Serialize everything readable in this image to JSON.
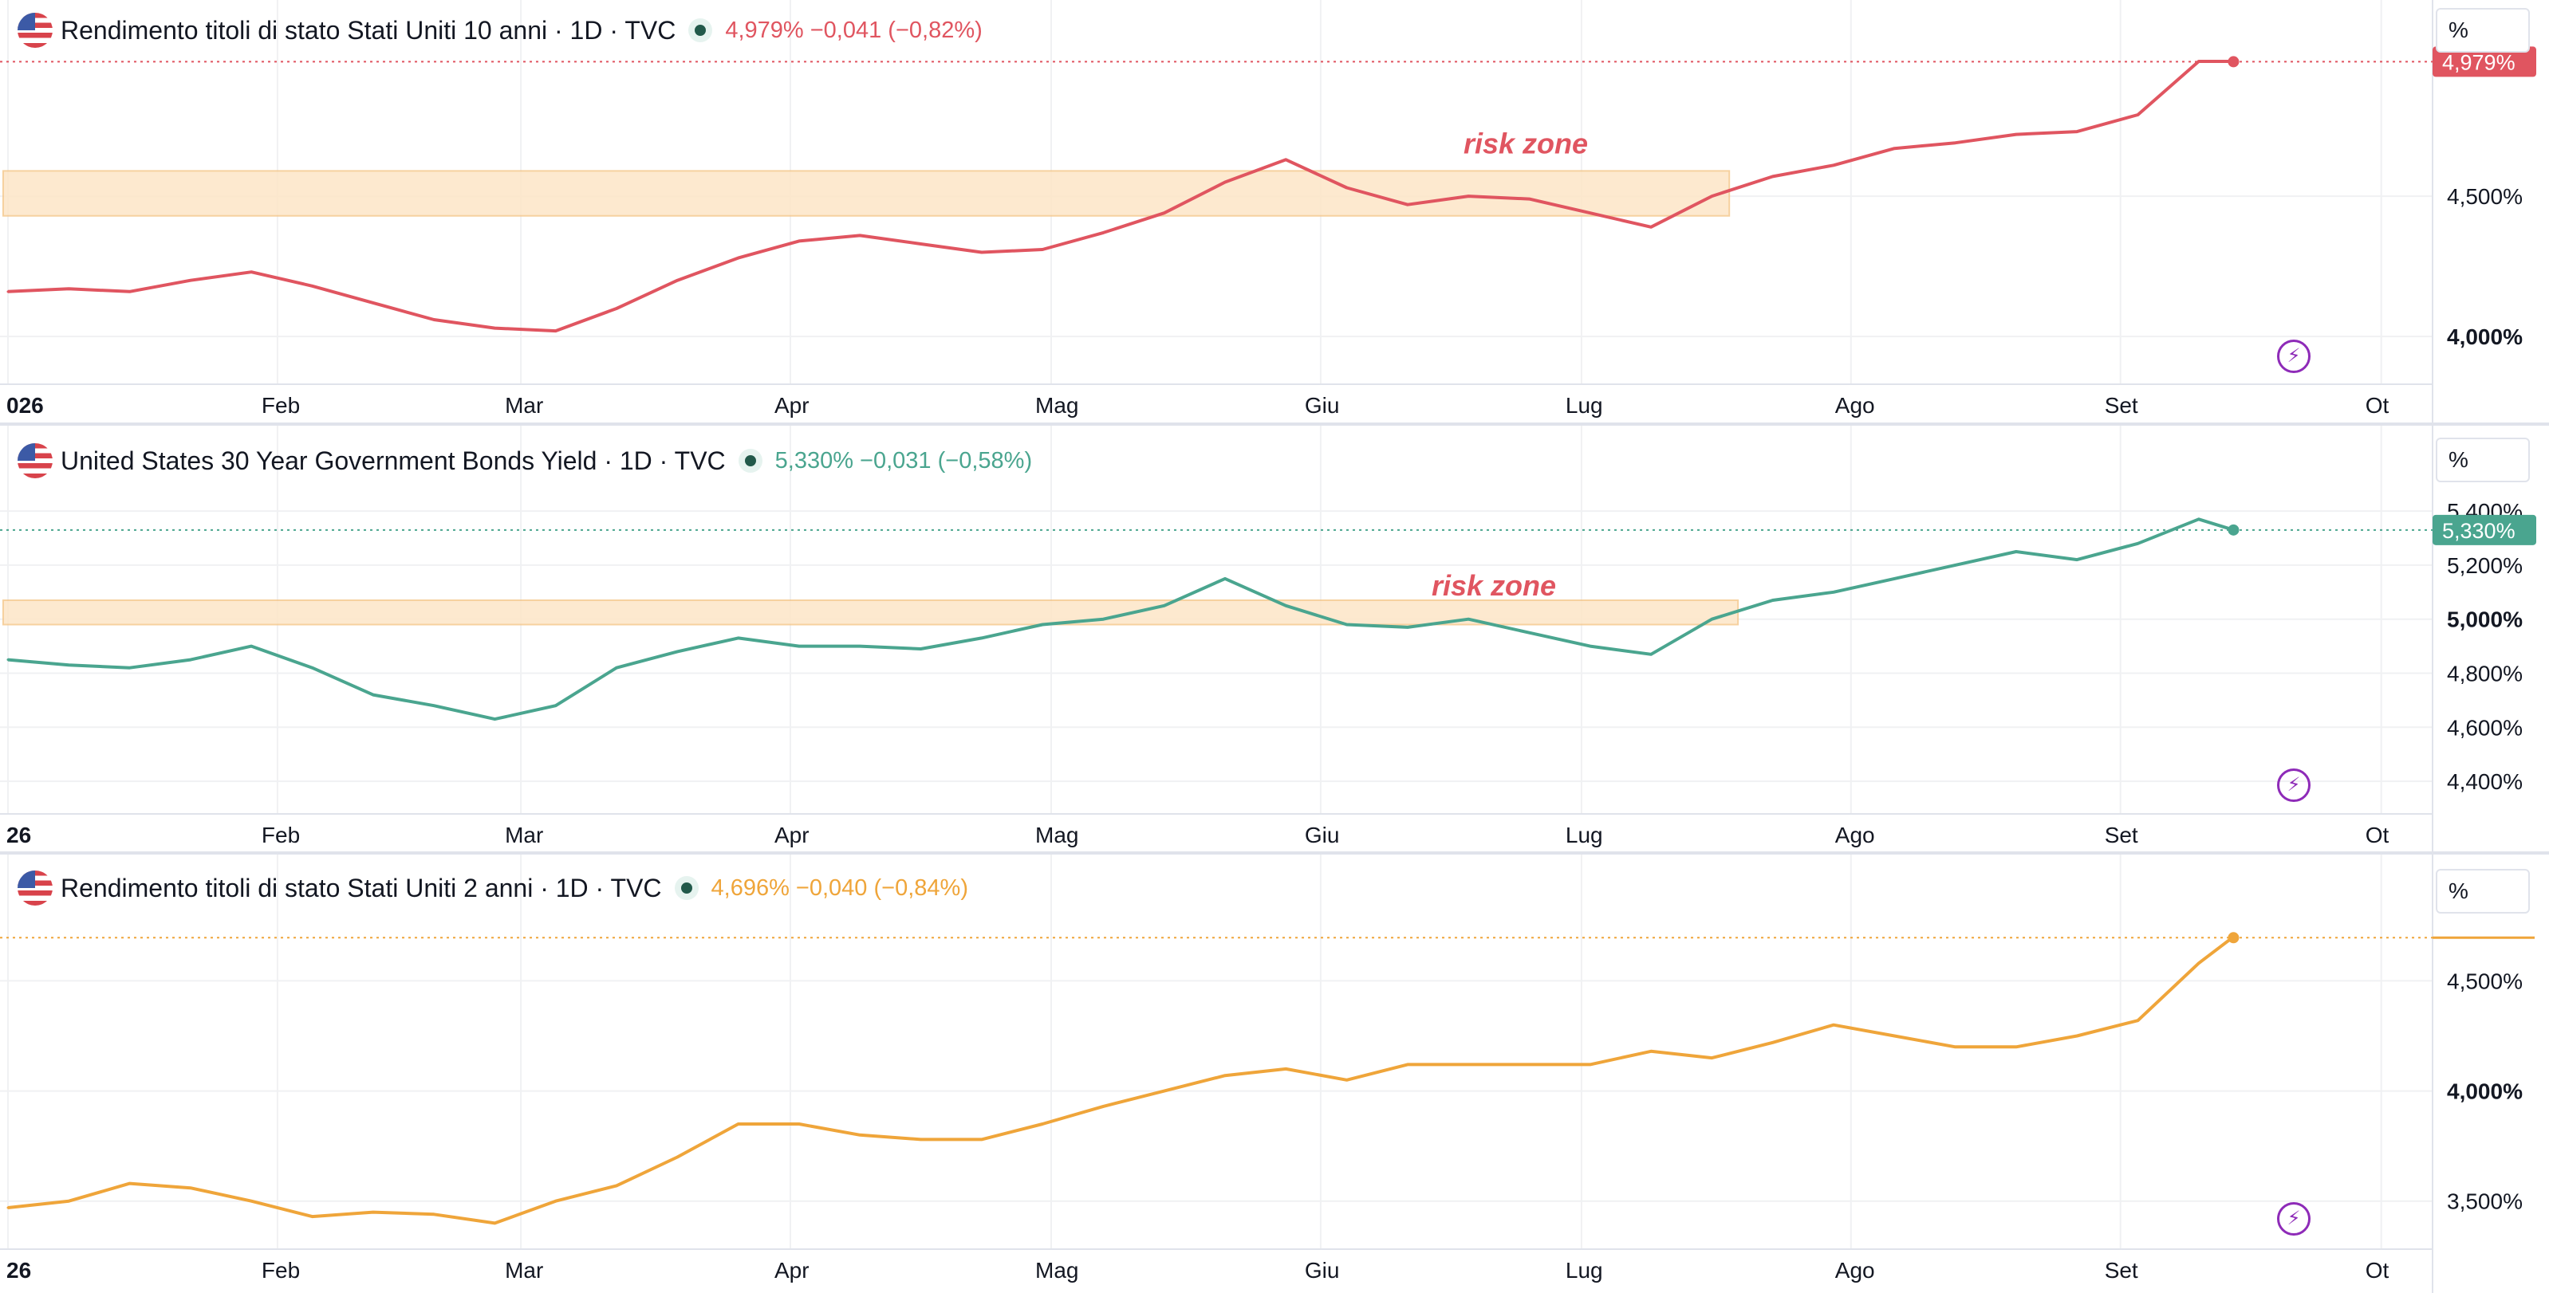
{
  "colors": {
    "ten_year": "#e05560",
    "thirty_year": "#4aa58f",
    "two_year": "#efa53a",
    "risk_fill": "#fde6c7",
    "risk_stroke": "#f5c98f",
    "risk_text": "#e05560",
    "grid": "#f0f1f3",
    "axis_text": "#131722"
  },
  "icons": {
    "flag": "us-flag-icon",
    "status": "market-status-dot-icon",
    "alert": "lightning-bolt-icon"
  },
  "panes": [
    {
      "title": "Rendimento titoli di stato Stati Uniti 10 anni · 1D · TVC",
      "quote": "4,979%  −0,041 (−0,82%)",
      "scale_label": "%",
      "last_label": "4,979%",
      "annotation": "risk zone"
    },
    {
      "title": "United States 30 Year Government Bonds Yield · 1D · TVC",
      "quote": "5,330%  −0,031 (−0,58%)",
      "scale_label": "%",
      "last_label": "5,330%",
      "annotation": "risk zone"
    },
    {
      "title": "Rendimento titoli di stato Stati Uniti 2 anni · 1D · TVC",
      "quote": "4,696%  −0,040 (−0,84%)",
      "scale_label": "%",
      "last_label": "",
      "annotation": ""
    }
  ],
  "chart_data": [
    {
      "type": "line",
      "x_labels": [
        "026",
        "Feb",
        "Mar",
        "Apr",
        "Mag",
        "Giu",
        "Lug",
        "Ago",
        "Set",
        "Ot"
      ],
      "x_label_positions_days": [
        0,
        31,
        59,
        90,
        120,
        151,
        181,
        212,
        243,
        273
      ],
      "y_ticks": [
        "4,000%",
        "4,500%"
      ],
      "ylim": [
        3.85,
        5.0
      ],
      "last_value": 4.979,
      "risk_zone": {
        "from_day": 0,
        "to_day": 198,
        "low": 4.43,
        "high": 4.59
      },
      "series": [
        {
          "x_days": [
            0,
            7,
            14,
            21,
            28,
            35,
            42,
            49,
            56,
            63,
            70,
            77,
            84,
            91,
            98,
            105,
            112,
            119,
            126,
            133,
            140,
            147,
            154,
            161,
            168,
            175,
            182,
            189,
            196,
            203,
            210,
            217,
            224,
            231,
            238,
            245,
            252,
            256
          ],
          "values": [
            4.16,
            4.17,
            4.16,
            4.2,
            4.23,
            4.18,
            4.12,
            4.06,
            4.03,
            4.02,
            4.1,
            4.2,
            4.28,
            4.34,
            4.36,
            4.33,
            4.3,
            4.31,
            4.37,
            4.44,
            4.55,
            4.63,
            4.53,
            4.47,
            4.5,
            4.49,
            4.44,
            4.39,
            4.5,
            4.57,
            4.61,
            4.67,
            4.69,
            4.72,
            4.73,
            4.79,
            4.98,
            4.98
          ]
        }
      ]
    },
    {
      "type": "line",
      "x_labels": [
        "26",
        "Feb",
        "Mar",
        "Apr",
        "Mag",
        "Giu",
        "Lug",
        "Ago",
        "Set",
        "Ot"
      ],
      "x_label_positions_days": [
        0,
        31,
        59,
        90,
        120,
        151,
        181,
        212,
        243,
        273
      ],
      "y_ticks": [
        "4,400%",
        "4,600%",
        "4,800%",
        "5,000%",
        "5,200%",
        "5,400%"
      ],
      "ylim": [
        4.3,
        5.48
      ],
      "last_value": 5.33,
      "risk_zone": {
        "from_day": 0,
        "to_day": 199,
        "low": 4.98,
        "high": 5.07
      },
      "series": [
        {
          "x_days": [
            0,
            7,
            14,
            21,
            28,
            35,
            42,
            49,
            56,
            63,
            70,
            77,
            84,
            91,
            98,
            105,
            112,
            119,
            126,
            133,
            140,
            147,
            154,
            161,
            168,
            175,
            182,
            189,
            196,
            203,
            210,
            217,
            224,
            231,
            238,
            245,
            252,
            256
          ],
          "values": [
            4.85,
            4.83,
            4.82,
            4.85,
            4.9,
            4.82,
            4.72,
            4.68,
            4.63,
            4.68,
            4.82,
            4.88,
            4.93,
            4.9,
            4.9,
            4.89,
            4.93,
            4.98,
            5.0,
            5.05,
            5.15,
            5.05,
            4.98,
            4.97,
            5.0,
            4.95,
            4.9,
            4.87,
            5.0,
            5.07,
            5.1,
            5.15,
            5.2,
            5.25,
            5.22,
            5.28,
            5.37,
            5.33
          ]
        }
      ]
    },
    {
      "type": "line",
      "x_labels": [
        "26",
        "Feb",
        "Mar",
        "Apr",
        "Mag",
        "Giu",
        "Lug",
        "Ago",
        "Set",
        "Ot"
      ],
      "x_label_positions_days": [
        0,
        31,
        59,
        90,
        120,
        151,
        181,
        212,
        243,
        273
      ],
      "y_ticks": [
        "3,500%",
        "4,000%",
        "4,500%"
      ],
      "ylim": [
        3.3,
        4.82
      ],
      "last_value": 4.696,
      "series": [
        {
          "x_days": [
            0,
            7,
            14,
            21,
            28,
            35,
            42,
            49,
            56,
            63,
            70,
            77,
            84,
            91,
            98,
            105,
            112,
            119,
            126,
            133,
            140,
            147,
            154,
            161,
            168,
            175,
            182,
            189,
            196,
            203,
            210,
            217,
            224,
            231,
            238,
            245,
            252,
            256
          ],
          "values": [
            3.47,
            3.5,
            3.58,
            3.56,
            3.5,
            3.43,
            3.45,
            3.44,
            3.4,
            3.5,
            3.57,
            3.7,
            3.85,
            3.85,
            3.8,
            3.78,
            3.78,
            3.85,
            3.93,
            4.0,
            4.07,
            4.1,
            4.05,
            4.12,
            4.12,
            4.12,
            4.12,
            4.18,
            4.15,
            4.22,
            4.3,
            4.25,
            4.2,
            4.2,
            4.25,
            4.32,
            4.58,
            4.7
          ]
        }
      ]
    }
  ]
}
